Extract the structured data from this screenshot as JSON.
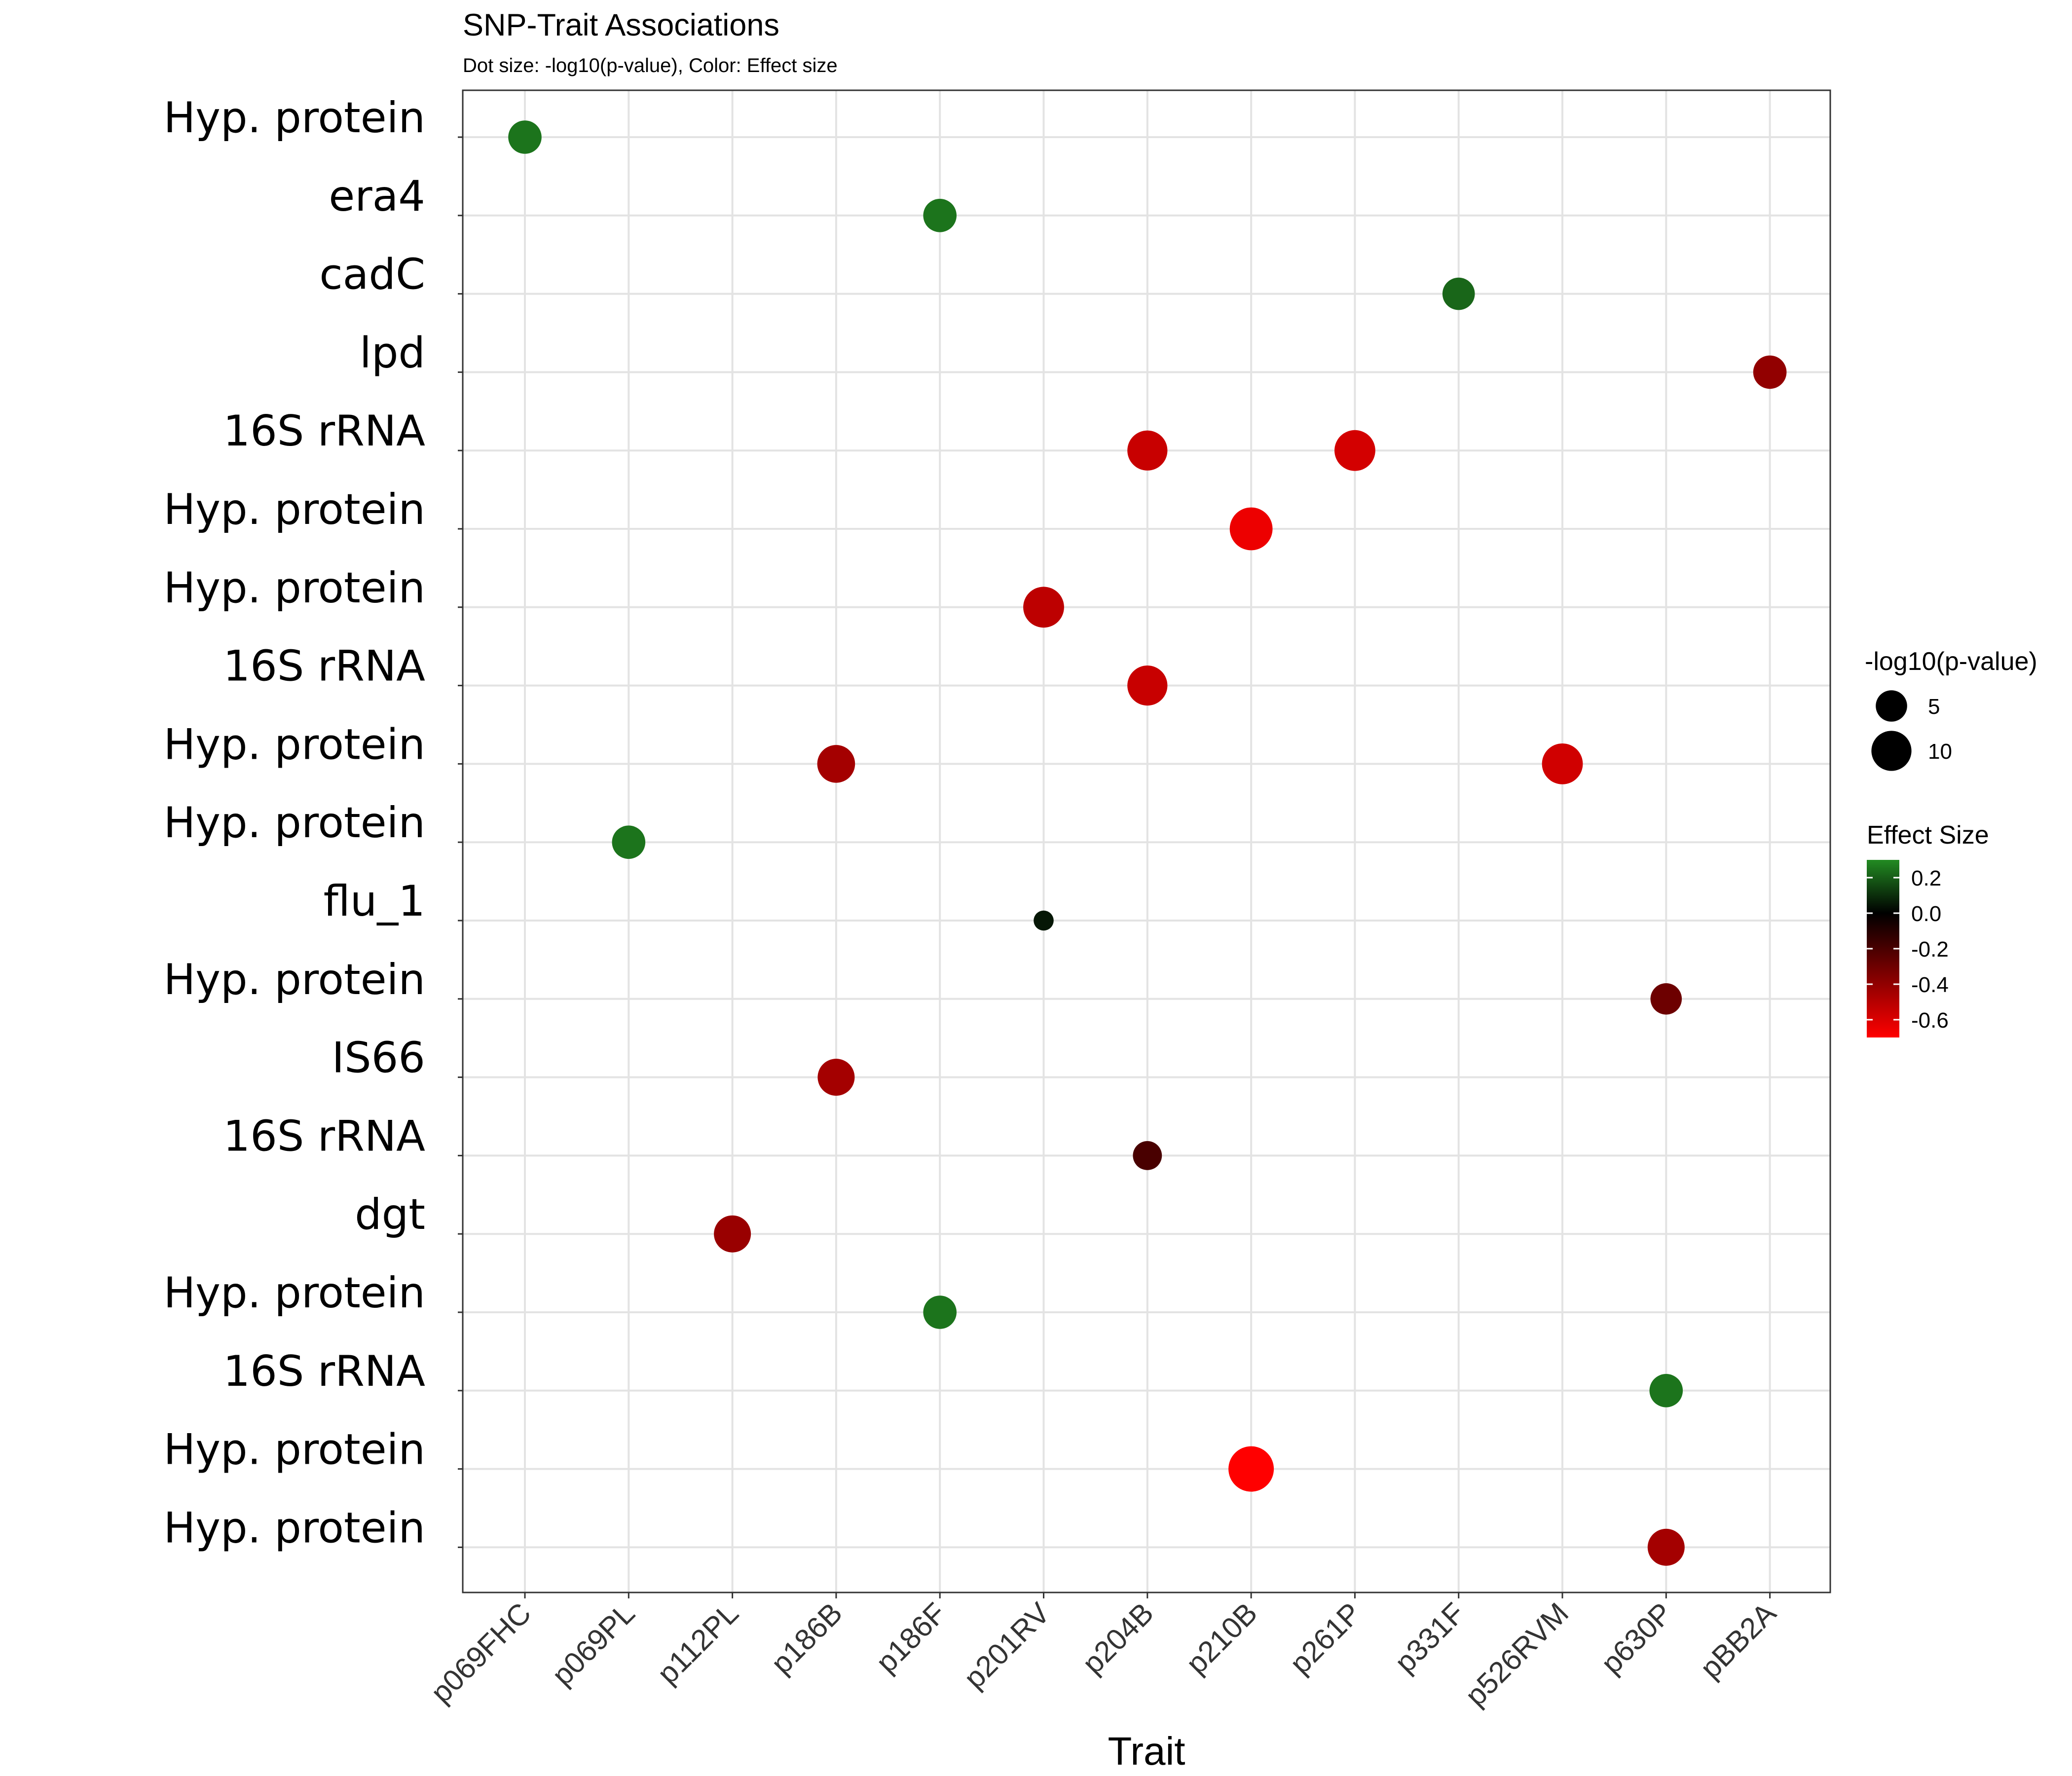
{
  "chart_data": {
    "type": "scatter",
    "title": "SNP-Trait Associations",
    "subtitle": "Dot size: -log10(p-value), Color: Effect size",
    "xlabel": "Trait",
    "ylabel": "",
    "grid": true,
    "x_categories": [
      "p069FHC",
      "p069PL",
      "p112PL",
      "p186B",
      "p186F",
      "p201RV",
      "p204B",
      "p210B",
      "p261P",
      "p331F",
      "p526RVM",
      "p630P",
      "pBB2A"
    ],
    "y_categories": [
      "Hyp. protein",
      "era4",
      "cadC",
      "lpd",
      "16S rRNA",
      "Hyp. protein",
      "Hyp. protein",
      "16S rRNA",
      "Hyp. protein",
      "Hyp. protein",
      "flu_1",
      "Hyp. protein",
      "IS66",
      "16S rRNA",
      "dgt",
      "Hyp. protein",
      "16S rRNA",
      "Hyp. protein",
      "Hyp. protein"
    ],
    "points": [
      {
        "row": 0,
        "trait": "p069FHC",
        "neglog10p": 6,
        "effect": 0.25
      },
      {
        "row": 1,
        "trait": "p186F",
        "neglog10p": 6,
        "effect": 0.25
      },
      {
        "row": 2,
        "trait": "p331F",
        "neglog10p": 5.5,
        "effect": 0.22
      },
      {
        "row": 3,
        "trait": "pBB2A",
        "neglog10p": 6,
        "effect": -0.4
      },
      {
        "row": 4,
        "trait": "p204B",
        "neglog10p": 10,
        "effect": -0.55
      },
      {
        "row": 4,
        "trait": "p261P",
        "neglog10p": 10.5,
        "effect": -0.58
      },
      {
        "row": 5,
        "trait": "p210B",
        "neglog10p": 12,
        "effect": -0.65
      },
      {
        "row": 6,
        "trait": "p201RV",
        "neglog10p": 10.5,
        "effect": -0.52
      },
      {
        "row": 7,
        "trait": "p204B",
        "neglog10p": 10,
        "effect": -0.55
      },
      {
        "row": 8,
        "trait": "p186B",
        "neglog10p": 8.5,
        "effect": -0.45
      },
      {
        "row": 8,
        "trait": "p526RVM",
        "neglog10p": 10.5,
        "effect": -0.57
      },
      {
        "row": 9,
        "trait": "p069PL",
        "neglog10p": 6,
        "effect": 0.25
      },
      {
        "row": 10,
        "trait": "p201RV",
        "neglog10p": 1.5,
        "effect": 0.05
      },
      {
        "row": 11,
        "trait": "p630P",
        "neglog10p": 5,
        "effect": -0.3
      },
      {
        "row": 12,
        "trait": "p186B",
        "neglog10p": 8,
        "effect": -0.45
      },
      {
        "row": 13,
        "trait": "p204B",
        "neglog10p": 4,
        "effect": -0.2
      },
      {
        "row": 14,
        "trait": "p112PL",
        "neglog10p": 8,
        "effect": -0.42
      },
      {
        "row": 15,
        "trait": "p186F",
        "neglog10p": 6,
        "effect": 0.25
      },
      {
        "row": 16,
        "trait": "p630P",
        "neglog10p": 6,
        "effect": 0.25
      },
      {
        "row": 17,
        "trait": "p210B",
        "neglog10p": 14,
        "effect": -0.7
      },
      {
        "row": 18,
        "trait": "p630P",
        "neglog10p": 8,
        "effect": -0.45
      }
    ],
    "size_legend": {
      "title": "-log10(p-value)",
      "values": [
        5,
        10
      ],
      "labels": [
        "5",
        "10"
      ]
    },
    "color_legend": {
      "title": "Effect Size",
      "ticks": [
        0.2,
        0.0,
        -0.2,
        -0.4,
        -0.6
      ],
      "tick_labels": [
        "0.2",
        "0.0",
        "-0.2",
        "-0.4",
        "-0.6"
      ],
      "range": [
        -0.7,
        0.3
      ],
      "low_color": "#ff0000",
      "mid_color": "#000000",
      "high_color": "#228b22"
    }
  }
}
